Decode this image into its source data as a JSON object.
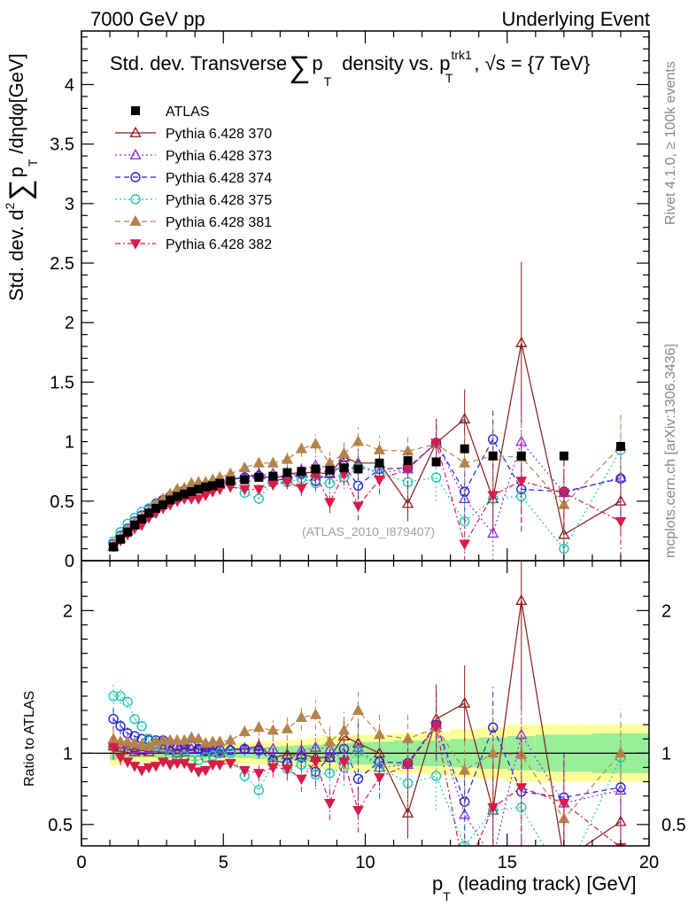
{
  "header": {
    "left": "7000 GeV pp",
    "right": "Underlying Event"
  },
  "side_labels": {
    "rivet": "Rivet 4.1.0, ≥ 100k events",
    "mcplots": "mcplots.cern.ch [arXiv:1306.3436]"
  },
  "watermark": "(ATLAS_2010_I879407)",
  "title": {
    "a": "Std. dev. Transverse",
    "sum": "∑",
    "p": "p",
    "t": "T",
    "b": "density vs. p",
    "sup": "trk1",
    "sub": "T",
    "c": ", √s = {7 TeV}"
  },
  "ylabel_main": {
    "a": "Std. dev. d",
    "sup": "2",
    "sum": "∑",
    "p": "p",
    "t": "T",
    "b": "/dηdφ[GeV]"
  },
  "ylabel_ratio": "Ratio to ATLAS",
  "xlabel": {
    "p": "p",
    "t": "T",
    "rest": "(leading track) [GeV]"
  },
  "chart_data": {
    "type": "scatter",
    "x_range": [
      0,
      20
    ],
    "x_ticks": [
      0,
      5,
      10,
      15,
      20
    ],
    "main": {
      "ylim": [
        0,
        4.45
      ],
      "y_ticks": [
        0,
        0.5,
        1,
        1.5,
        2,
        2.5,
        3,
        3.5,
        4
      ]
    },
    "ratio": {
      "ylim": [
        0.35,
        2.35
      ],
      "y_ticks": [
        0.5,
        1,
        2
      ],
      "right_ticks": [
        0.5,
        1,
        2
      ]
    },
    "legend": [
      {
        "name": "ATLAS",
        "marker": "square-filled",
        "color": "#000000",
        "dash": ""
      },
      {
        "name": "Pythia 6.428 370",
        "marker": "triangle-open",
        "color": "#8b1a1a",
        "dash": ""
      },
      {
        "name": "Pythia 6.428 373",
        "marker": "triangle-open",
        "color": "#8a2be2",
        "dash": "2,3"
      },
      {
        "name": "Pythia 6.428 374",
        "marker": "circle-open",
        "color": "#2323d8",
        "dash": "6,4"
      },
      {
        "name": "Pythia 6.428 375",
        "marker": "circle-open",
        "color": "#20c4b0",
        "dash": "2,3"
      },
      {
        "name": "Pythia 6.428 381",
        "marker": "triangle-filled",
        "color": "#b5834a",
        "dash": "6,4"
      },
      {
        "name": "Pythia 6.428 382",
        "marker": "triangle-down-filled",
        "color": "#d81b48",
        "dash": "6,3,2,3"
      }
    ],
    "x": [
      1.125,
      1.375,
      1.625,
      1.875,
      2.125,
      2.375,
      2.625,
      2.875,
      3.125,
      3.375,
      3.625,
      3.875,
      4.125,
      4.375,
      4.625,
      4.875,
      5.25,
      5.75,
      6.25,
      6.75,
      7.25,
      7.75,
      8.25,
      8.75,
      9.25,
      9.75,
      10.5,
      11.5,
      12.5,
      13.5,
      14.5,
      15.5,
      17.0,
      19.0
    ],
    "atlas_values": [
      0.115,
      0.18,
      0.24,
      0.3,
      0.35,
      0.4,
      0.44,
      0.47,
      0.51,
      0.54,
      0.56,
      0.58,
      0.6,
      0.62,
      0.63,
      0.65,
      0.67,
      0.68,
      0.7,
      0.71,
      0.74,
      0.75,
      0.77,
      0.76,
      0.78,
      0.77,
      0.82,
      0.84,
      0.83,
      0.94,
      0.88,
      0.88,
      0.88,
      0.96
    ],
    "series": [
      {
        "name": "Pythia 6.428 370",
        "values": [
          0.12,
          0.19,
          0.25,
          0.3,
          0.36,
          0.4,
          0.46,
          0.49,
          0.52,
          0.54,
          0.57,
          0.6,
          0.62,
          0.63,
          0.64,
          0.65,
          0.68,
          0.7,
          0.73,
          0.68,
          0.73,
          0.74,
          0.74,
          0.73,
          0.87,
          0.82,
          0.82,
          0.48,
          0.99,
          1.19,
          0.52,
          1.83,
          0.22,
          0.5
        ],
        "errors": [
          0.01,
          0.01,
          0.01,
          0.01,
          0.01,
          0.01,
          0.01,
          0.01,
          0.01,
          0.01,
          0.01,
          0.01,
          0.02,
          0.02,
          0.02,
          0.02,
          0.02,
          0.03,
          0.04,
          0.05,
          0.06,
          0.07,
          0.08,
          0.09,
          0.1,
          0.12,
          0.12,
          0.15,
          0.2,
          0.25,
          0.3,
          0.68,
          0.3,
          0.3
        ]
      },
      {
        "name": "Pythia 6.428 373",
        "values": [
          0.12,
          0.19,
          0.26,
          0.31,
          0.36,
          0.41,
          0.46,
          0.49,
          0.52,
          0.55,
          0.58,
          0.6,
          0.62,
          0.63,
          0.65,
          0.66,
          0.69,
          0.7,
          0.72,
          0.73,
          0.69,
          0.76,
          0.8,
          0.78,
          0.74,
          0.8,
          0.74,
          0.77,
          0.99,
          0.52,
          0.23,
          1.0,
          0.57,
          0.7
        ],
        "errors": [
          0.01,
          0.01,
          0.01,
          0.01,
          0.01,
          0.01,
          0.01,
          0.01,
          0.01,
          0.01,
          0.01,
          0.01,
          0.02,
          0.02,
          0.02,
          0.02,
          0.02,
          0.03,
          0.04,
          0.05,
          0.06,
          0.07,
          0.08,
          0.09,
          0.1,
          0.12,
          0.12,
          0.15,
          0.2,
          0.25,
          0.3,
          0.4,
          0.3,
          0.3
        ]
      },
      {
        "name": "Pythia 6.428 374",
        "values": [
          0.14,
          0.21,
          0.27,
          0.33,
          0.38,
          0.43,
          0.48,
          0.51,
          0.54,
          0.57,
          0.59,
          0.61,
          0.62,
          0.63,
          0.65,
          0.66,
          0.68,
          0.7,
          0.71,
          0.67,
          0.69,
          0.73,
          0.67,
          0.74,
          0.8,
          0.63,
          0.77,
          0.78,
          0.99,
          0.58,
          1.02,
          0.6,
          0.58,
          0.69
        ],
        "errors": [
          0.01,
          0.01,
          0.01,
          0.01,
          0.01,
          0.01,
          0.01,
          0.01,
          0.01,
          0.01,
          0.01,
          0.01,
          0.02,
          0.02,
          0.02,
          0.02,
          0.02,
          0.03,
          0.04,
          0.05,
          0.06,
          0.07,
          0.08,
          0.09,
          0.1,
          0.12,
          0.12,
          0.15,
          0.2,
          0.25,
          0.25,
          0.35,
          0.3,
          0.3
        ]
      },
      {
        "name": "Pythia 6.428 375",
        "values": [
          0.16,
          0.24,
          0.31,
          0.36,
          0.41,
          0.44,
          0.47,
          0.49,
          0.5,
          0.52,
          0.55,
          0.55,
          0.57,
          0.6,
          0.62,
          0.65,
          0.67,
          0.57,
          0.52,
          0.66,
          0.66,
          0.69,
          0.65,
          0.65,
          0.7,
          0.78,
          0.74,
          0.66,
          0.7,
          0.33,
          0.52,
          0.54,
          0.1,
          0.93
        ],
        "errors": [
          0.01,
          0.01,
          0.01,
          0.01,
          0.01,
          0.01,
          0.01,
          0.01,
          0.01,
          0.01,
          0.01,
          0.01,
          0.02,
          0.02,
          0.02,
          0.02,
          0.02,
          0.03,
          0.04,
          0.05,
          0.06,
          0.07,
          0.08,
          0.09,
          0.1,
          0.12,
          0.12,
          0.15,
          0.2,
          0.25,
          0.25,
          0.3,
          0.2,
          0.25
        ]
      },
      {
        "name": "Pythia 6.428 381",
        "values": [
          0.13,
          0.19,
          0.26,
          0.32,
          0.37,
          0.42,
          0.48,
          0.52,
          0.56,
          0.6,
          0.61,
          0.65,
          0.66,
          0.66,
          0.68,
          0.7,
          0.73,
          0.78,
          0.82,
          0.82,
          0.85,
          0.94,
          0.98,
          0.82,
          0.9,
          1.0,
          0.93,
          0.92,
          0.98,
          0.82,
          0.88,
          0.87,
          0.47,
          0.96
        ],
        "errors": [
          0.01,
          0.01,
          0.01,
          0.01,
          0.01,
          0.01,
          0.01,
          0.01,
          0.01,
          0.01,
          0.01,
          0.01,
          0.02,
          0.02,
          0.02,
          0.02,
          0.02,
          0.03,
          0.04,
          0.05,
          0.06,
          0.07,
          0.08,
          0.09,
          0.1,
          0.12,
          0.12,
          0.15,
          0.2,
          0.25,
          0.3,
          0.35,
          0.3,
          0.3
        ]
      },
      {
        "name": "Pythia 6.428 382",
        "values": [
          0.12,
          0.17,
          0.22,
          0.27,
          0.3,
          0.36,
          0.4,
          0.44,
          0.47,
          0.5,
          0.52,
          0.52,
          0.52,
          0.55,
          0.58,
          0.6,
          0.62,
          0.6,
          0.6,
          0.64,
          0.66,
          0.61,
          0.72,
          0.49,
          0.73,
          0.46,
          0.68,
          0.77,
          0.99,
          0.14,
          0.55,
          0.67,
          0.57,
          0.33
        ],
        "errors": [
          0.01,
          0.01,
          0.01,
          0.01,
          0.01,
          0.01,
          0.01,
          0.01,
          0.01,
          0.01,
          0.01,
          0.01,
          0.02,
          0.02,
          0.02,
          0.02,
          0.02,
          0.03,
          0.04,
          0.05,
          0.06,
          0.07,
          0.08,
          0.09,
          0.1,
          0.12,
          0.12,
          0.15,
          0.2,
          0.25,
          0.3,
          0.35,
          0.3,
          0.3
        ]
      }
    ],
    "ratio_series": [
      {
        "name": "Pythia 6.428 370",
        "values": [
          1.05,
          1.04,
          1.03,
          1.01,
          1.02,
          1.01,
          1.04,
          1.03,
          1.02,
          1.0,
          1.01,
          1.03,
          1.03,
          1.01,
          1.01,
          1.0,
          1.03,
          1.03,
          1.05,
          0.97,
          0.99,
          0.99,
          0.97,
          0.97,
          1.12,
          1.07,
          1.0,
          0.58,
          1.24,
          1.35,
          0.6,
          2.07,
          0.25,
          0.52
        ]
      },
      {
        "name": "Pythia 6.428 373",
        "values": [
          1.07,
          1.06,
          1.07,
          1.03,
          1.03,
          1.03,
          1.04,
          1.04,
          1.03,
          1.02,
          1.03,
          1.03,
          1.03,
          1.02,
          1.03,
          1.01,
          1.03,
          1.03,
          1.03,
          1.03,
          0.94,
          1.02,
          1.04,
          1.03,
          0.95,
          1.04,
          0.9,
          0.92,
          1.2,
          0.57,
          0.26,
          1.13,
          0.65,
          0.74
        ]
      },
      {
        "name": "Pythia 6.428 374",
        "values": [
          1.24,
          1.19,
          1.14,
          1.12,
          1.1,
          1.09,
          1.09,
          1.09,
          1.07,
          1.05,
          1.06,
          1.05,
          1.03,
          1.02,
          1.03,
          1.02,
          1.02,
          1.03,
          1.02,
          0.95,
          0.93,
          0.97,
          0.87,
          0.97,
          1.03,
          0.82,
          0.94,
          0.93,
          1.2,
          0.66,
          1.18,
          0.73,
          0.69,
          0.76
        ]
      },
      {
        "name": "Pythia 6.428 375",
        "values": [
          1.4,
          1.4,
          1.36,
          1.24,
          1.19,
          1.1,
          1.06,
          1.04,
          0.98,
          0.96,
          0.98,
          0.95,
          0.95,
          0.97,
          0.98,
          1.0,
          1.0,
          0.84,
          0.74,
          0.93,
          0.89,
          0.92,
          0.85,
          0.86,
          0.9,
          1.01,
          0.9,
          0.79,
          0.84,
          0.35,
          0.6,
          0.62,
          0.11,
          0.97
        ]
      },
      {
        "name": "Pythia 6.428 381",
        "values": [
          1.1,
          1.08,
          1.08,
          1.07,
          1.06,
          1.05,
          1.08,
          1.09,
          1.09,
          1.09,
          1.09,
          1.11,
          1.1,
          1.07,
          1.08,
          1.08,
          1.09,
          1.15,
          1.18,
          1.16,
          1.17,
          1.25,
          1.27,
          1.08,
          1.16,
          1.3,
          1.13,
          1.1,
          1.18,
          0.88,
          1.0,
          0.99,
          0.54,
          1.0
        ]
      },
      {
        "name": "Pythia 6.428 382",
        "values": [
          1.04,
          0.97,
          0.94,
          0.91,
          0.88,
          0.9,
          0.91,
          0.94,
          0.92,
          0.93,
          0.93,
          0.9,
          0.87,
          0.88,
          0.92,
          0.92,
          0.93,
          0.88,
          0.86,
          0.9,
          0.89,
          0.82,
          0.94,
          0.65,
          0.94,
          0.6,
          0.83,
          0.92,
          1.19,
          0.15,
          0.62,
          0.76,
          0.65,
          0.34
        ]
      }
    ],
    "ratio_bands": {
      "edges": [
        1,
        1.25,
        1.5,
        1.75,
        2,
        2.5,
        3,
        3.5,
        4,
        4.5,
        5,
        5.5,
        6,
        6.5,
        7,
        7.5,
        8,
        8.5,
        9,
        9.5,
        10,
        11,
        12,
        13,
        14,
        15,
        16,
        18,
        20
      ],
      "inner": [
        0.05,
        0.04,
        0.035,
        0.03,
        0.03,
        0.03,
        0.03,
        0.03,
        0.03,
        0.03,
        0.03,
        0.035,
        0.04,
        0.045,
        0.05,
        0.055,
        0.06,
        0.065,
        0.07,
        0.08,
        0.08,
        0.09,
        0.09,
        0.1,
        0.11,
        0.12,
        0.13,
        0.14
      ],
      "outer": [
        0.09,
        0.08,
        0.07,
        0.07,
        0.07,
        0.07,
        0.07,
        0.07,
        0.07,
        0.07,
        0.07,
        0.075,
        0.08,
        0.085,
        0.09,
        0.1,
        0.11,
        0.12,
        0.12,
        0.13,
        0.13,
        0.14,
        0.15,
        0.17,
        0.18,
        0.2,
        0.2,
        0.2
      ]
    }
  }
}
